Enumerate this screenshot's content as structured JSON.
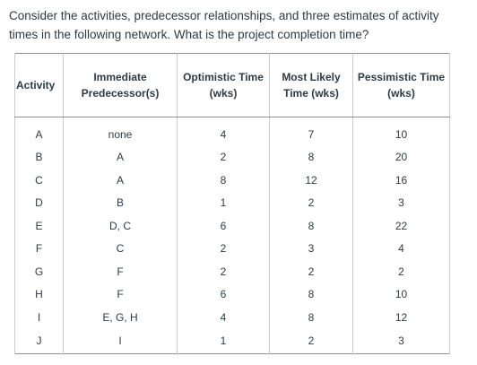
{
  "question": "Consider the activities, predecessor relationships, and three estimates of activity times in the following network. What is the project completion time?",
  "table": {
    "headers": {
      "activity": "Activity",
      "predecessor_line1": "Immediate",
      "predecessor_line2": "Predecessor(s)",
      "optimistic_line1": "Optimistic Time",
      "optimistic_line2": "(wks)",
      "most_likely_line1": "Most Likely",
      "most_likely_line2": "Time (wks)",
      "pessimistic_line1": "Pessimistic Time",
      "pessimistic_line2": "(wks)"
    },
    "rows": [
      {
        "activity": "A",
        "predecessors": "none",
        "optimistic": "4",
        "most_likely": "7",
        "pessimistic": "10"
      },
      {
        "activity": "B",
        "predecessors": "A",
        "optimistic": "2",
        "most_likely": "8",
        "pessimistic": "20"
      },
      {
        "activity": "C",
        "predecessors": "A",
        "optimistic": "8",
        "most_likely": "12",
        "pessimistic": "16"
      },
      {
        "activity": "D",
        "predecessors": "B",
        "optimistic": "1",
        "most_likely": "2",
        "pessimistic": "3"
      },
      {
        "activity": "E",
        "predecessors": "D, C",
        "optimistic": "6",
        "most_likely": "8",
        "pessimistic": "22"
      },
      {
        "activity": "F",
        "predecessors": "C",
        "optimistic": "2",
        "most_likely": "3",
        "pessimistic": "4"
      },
      {
        "activity": "G",
        "predecessors": "F",
        "optimistic": "2",
        "most_likely": "2",
        "pessimistic": "2"
      },
      {
        "activity": "H",
        "predecessors": "F",
        "optimistic": "6",
        "most_likely": "8",
        "pessimistic": "10"
      },
      {
        "activity": "I",
        "predecessors": "E, G, H",
        "optimistic": "4",
        "most_likely": "8",
        "pessimistic": "12"
      },
      {
        "activity": "J",
        "predecessors": "I",
        "optimistic": "1",
        "most_likely": "2",
        "pessimistic": "3"
      }
    ]
  }
}
